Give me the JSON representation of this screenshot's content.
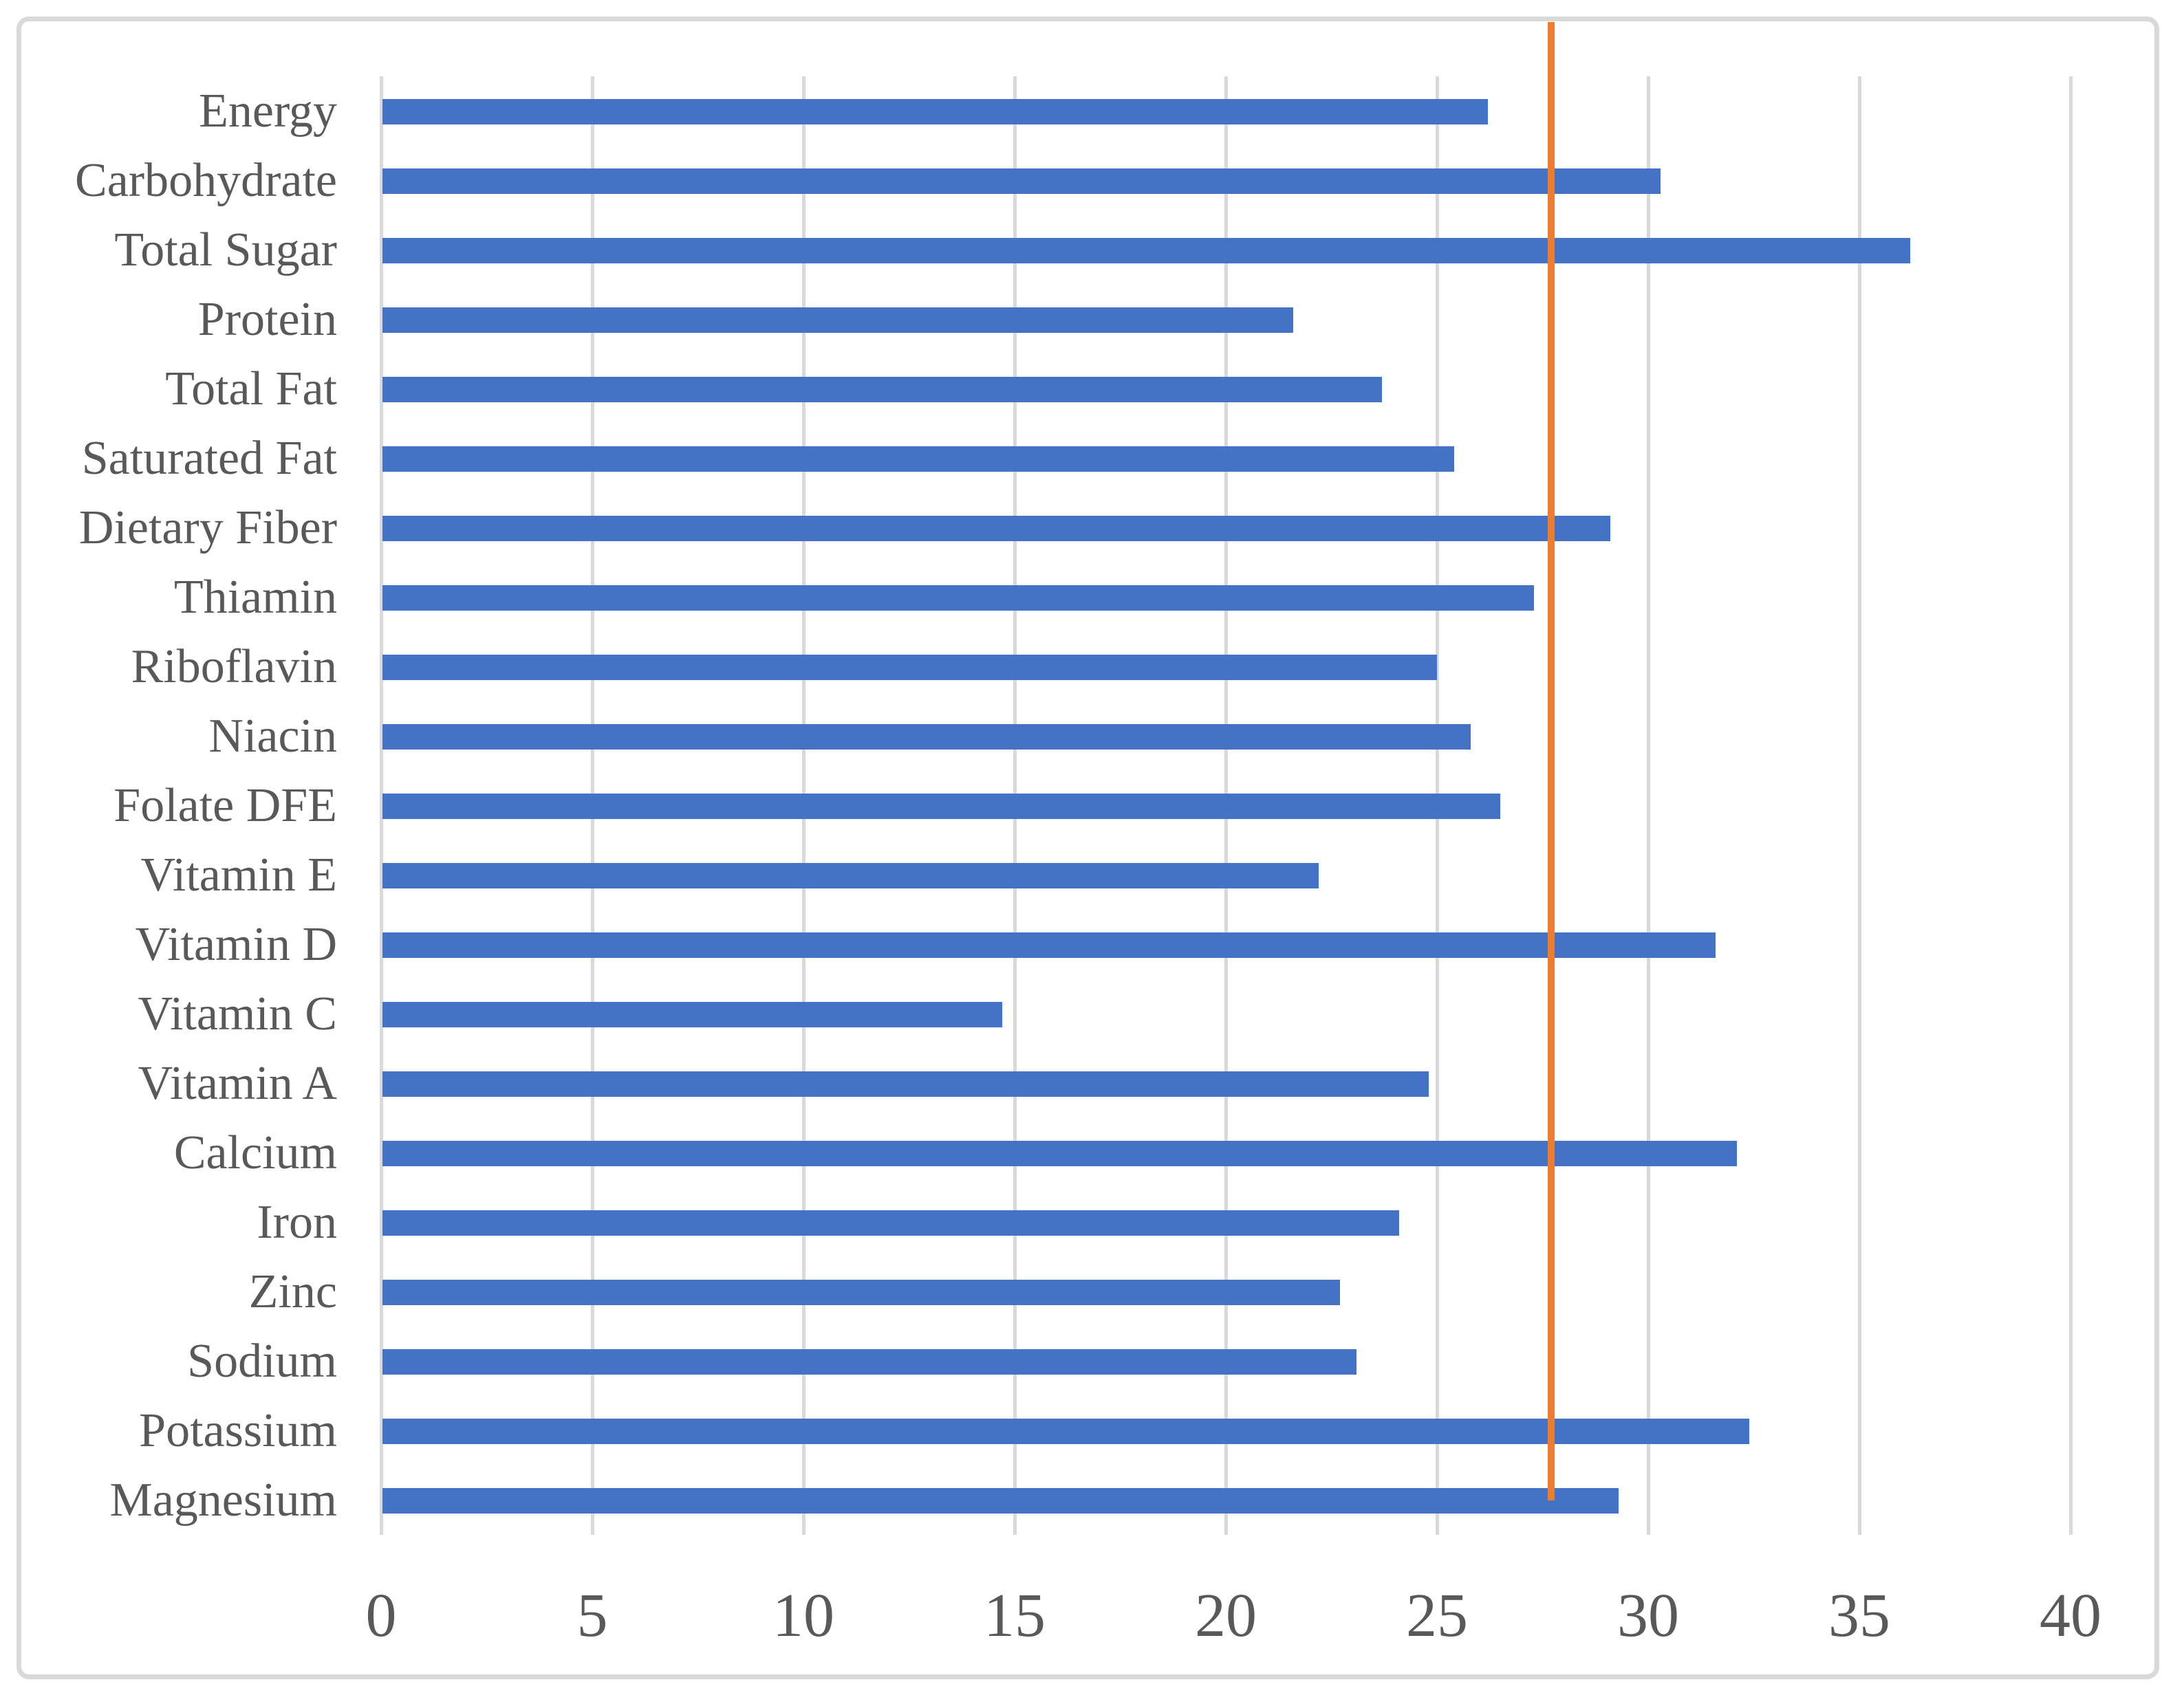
{
  "chart_data": {
    "type": "bar",
    "orientation": "horizontal",
    "title": "",
    "categories": [
      "Energy",
      "Carbohydrate",
      "Total Sugar",
      "Protein",
      "Total Fat",
      "Saturated Fat",
      "Dietary Fiber",
      "Thiamin",
      "Riboflavin",
      "Niacin",
      "Folate DFE",
      "Vitamin E",
      "Vitamin D",
      "Vitamin C",
      "Vitamin A",
      "Calcium",
      "Iron",
      "Zinc",
      "Sodium",
      "Potassium",
      "Magnesium"
    ],
    "values": [
      26.2,
      30.3,
      36.2,
      21.6,
      23.7,
      25.4,
      29.1,
      27.3,
      25.0,
      25.8,
      26.5,
      22.2,
      31.6,
      14.7,
      24.8,
      32.1,
      24.1,
      22.7,
      23.1,
      32.4,
      29.3
    ],
    "xlim": [
      0,
      40
    ],
    "xticks": [
      0,
      5,
      10,
      15,
      20,
      25,
      30,
      35,
      40
    ],
    "grid": "vertical",
    "legend_position": "none",
    "reference_line": {
      "value": 27.7,
      "color": "#ED7D31"
    },
    "bar_color": "#4472C4",
    "gridline_color": "#D9D9D9",
    "text_color": "#595959",
    "frame_color": "#D9D9D9"
  }
}
